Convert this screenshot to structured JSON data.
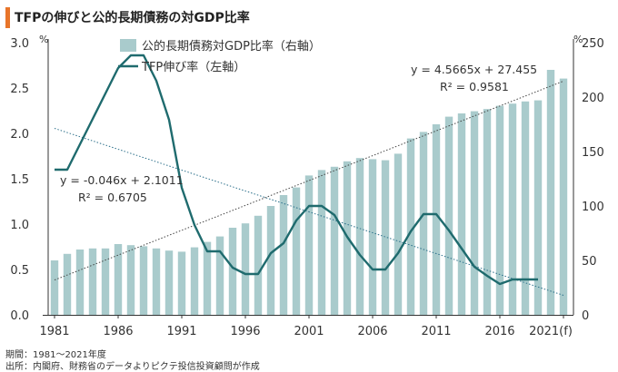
{
  "title": "TFPの伸びと公的長期債務の対GDP比率",
  "footnotes": {
    "period": "期間：1981～2021年度",
    "source": "出所：内閣府、財務省のデータよりピクテ投信投資顧問が作成"
  },
  "chart_data": {
    "type": "bar+line",
    "title": "TFPの伸びと公的長期債務の対GDP比率",
    "x_tick_labels": [
      "1981",
      "1986",
      "1991",
      "1996",
      "2001",
      "2006",
      "2011",
      "2016",
      "2021(f)"
    ],
    "left_axis": {
      "unit": "%",
      "ylim": [
        0,
        3.0
      ],
      "ticks": [
        "0.0",
        "0.5",
        "1.0",
        "1.5",
        "2.0",
        "2.5",
        "3.0"
      ]
    },
    "right_axis": {
      "unit": "%",
      "ylim": [
        0,
        250
      ],
      "ticks": [
        "0",
        "50",
        "100",
        "150",
        "200",
        "250"
      ]
    },
    "legend": {
      "placement": "top-center"
    },
    "series": [
      {
        "name": "公的長期債務対GDP比率（右軸）",
        "type": "bar",
        "axis": "right",
        "color": "#a9cbcc",
        "x": [
          1981,
          1982,
          1983,
          1984,
          1985,
          1986,
          1987,
          1988,
          1989,
          1990,
          1991,
          1992,
          1993,
          1994,
          1995,
          1996,
          1997,
          1998,
          1999,
          2000,
          2001,
          2002,
          2003,
          2004,
          2005,
          2006,
          2007,
          2008,
          2009,
          2010,
          2011,
          2012,
          2013,
          2014,
          2015,
          2016,
          2017,
          2018,
          2019,
          2020,
          2021
        ],
        "values": [
          50,
          56,
          60,
          61,
          61,
          65,
          64,
          63,
          61,
          59,
          58,
          62,
          67,
          72,
          80,
          84,
          91,
          100,
          110,
          117,
          128,
          133,
          136,
          141,
          144,
          143,
          142,
          148,
          162,
          168,
          175,
          182,
          185,
          187,
          189,
          192,
          194,
          196,
          197,
          225,
          217
        ]
      },
      {
        "name": "TFP伸び率（左軸）",
        "type": "line",
        "axis": "left",
        "color": "#1f6b6e",
        "x": [
          1981,
          1982,
          1983,
          1984,
          1985,
          1986,
          1987,
          1988,
          1989,
          1990,
          1991,
          1992,
          1993,
          1994,
          1995,
          1996,
          1997,
          1998,
          1999,
          2000,
          2001,
          2002,
          2003,
          2004,
          2005,
          2006,
          2007,
          2008,
          2009,
          2010,
          2011,
          2012,
          2013,
          2014,
          2015,
          2016,
          2017,
          2018,
          2019
        ],
        "values": [
          1.6,
          1.6,
          1.88,
          2.16,
          2.44,
          2.72,
          2.86,
          2.86,
          2.58,
          2.15,
          1.4,
          0.99,
          0.7,
          0.7,
          0.52,
          0.45,
          0.45,
          0.68,
          0.79,
          1.04,
          1.2,
          1.2,
          1.1,
          0.86,
          0.66,
          0.5,
          0.5,
          0.68,
          0.92,
          1.11,
          1.11,
          0.93,
          0.73,
          0.53,
          0.43,
          0.34,
          0.39,
          0.39,
          0.39
        ]
      }
    ],
    "trendlines": [
      {
        "axis": "left",
        "slope": -0.046,
        "intercept": 2.1011,
        "equation": "y = -0.046x + 2.1011",
        "r2": "R² = 0.6705"
      },
      {
        "axis": "right",
        "slope": 4.5665,
        "intercept": 27.455,
        "equation": "y = 4.5665x + 27.455",
        "r2": "R² = 0.9581"
      }
    ]
  }
}
